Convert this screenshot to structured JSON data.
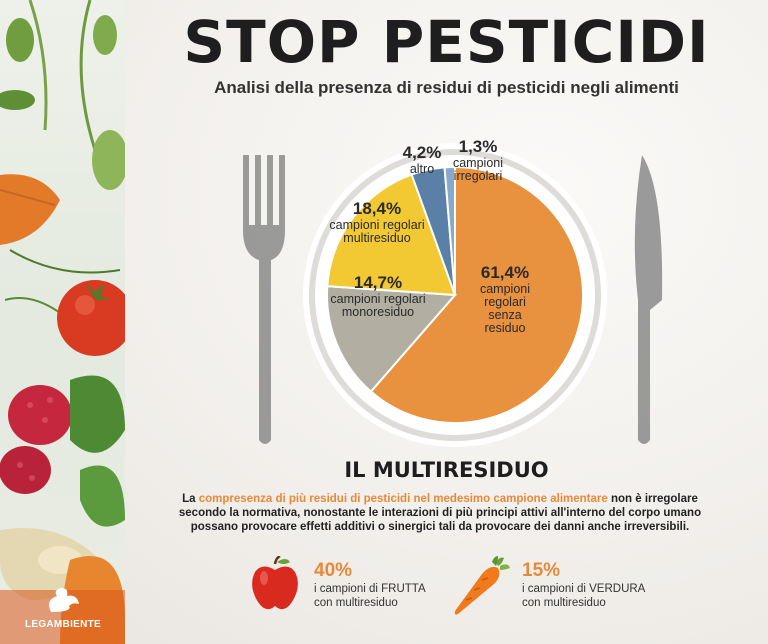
{
  "header": {
    "title": "STOP PESTICIDI",
    "subtitle": "Analisi della presenza di residui di pesticidi negli alimenti"
  },
  "chart_data": {
    "type": "pie",
    "slices": [
      {
        "pct_label": "61,4%",
        "label_lines": [
          "campioni",
          "regolari",
          "senza",
          "residuo"
        ],
        "value": 61.4,
        "color": "#e8913f"
      },
      {
        "pct_label": "14,7%",
        "label_lines": [
          "campioni regolari",
          "monoresiduo"
        ],
        "value": 14.7,
        "color": "#b2afa2"
      },
      {
        "pct_label": "18,4%",
        "label_lines": [
          "campioni regolari",
          "multiresiduo"
        ],
        "value": 18.4,
        "color": "#f2c933"
      },
      {
        "pct_label": "4,2%",
        "label_lines": [
          "altro"
        ],
        "value": 4.2,
        "color": "#5b80a8"
      },
      {
        "pct_label": "1,3%",
        "label_lines": [
          "campioni",
          "irregolari"
        ],
        "value": 1.3,
        "color": "#86a9cc"
      }
    ]
  },
  "multiresiduo": {
    "title": "IL MULTIRESIDUO",
    "para_a": "La ",
    "para_highlight": "compresenza di più residui di pesticidi nel medesimo campione alimentare",
    "para_b": " non è irregolare secondo la normativa, nonostante le interazioni di più principi attivi all'interno del corpo umano possano provocare effetti additivi o sinergici tali da provocare dei danni anche irreversibili."
  },
  "stats": [
    {
      "value": "40%",
      "line1": "i campioni di FRUTTA",
      "line2": "con multiresiduo",
      "icon": "apple-icon"
    },
    {
      "value": "15%",
      "line1": "i campioni di VERDURA",
      "line2": "con multiresiduo",
      "icon": "carrot-icon"
    }
  ],
  "logo": {
    "text": "LEGAMBIENTE"
  },
  "colors": {
    "accent": "#e8893a",
    "plate": "#ffffff",
    "cutlery": "#8a8a8a"
  }
}
